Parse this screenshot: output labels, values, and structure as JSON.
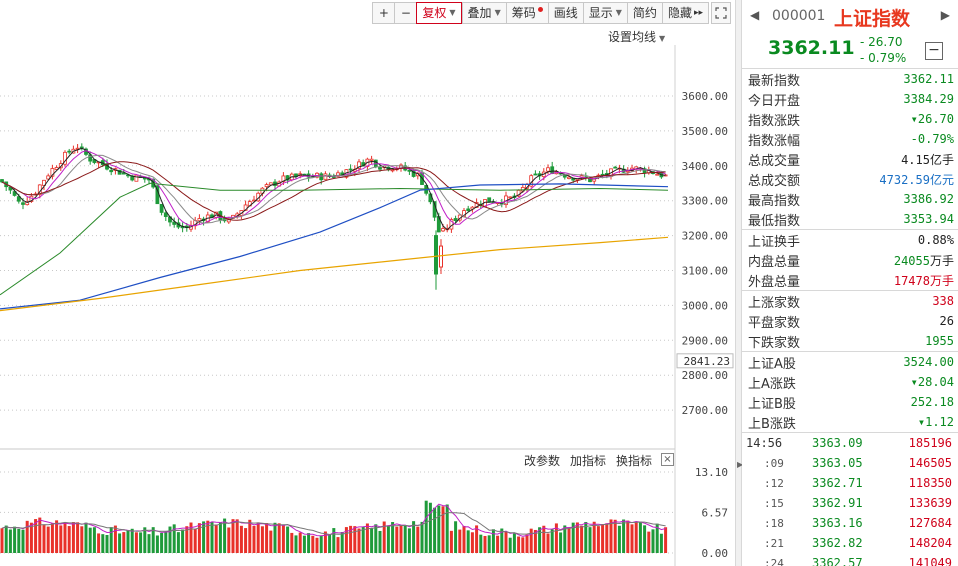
{
  "toolbar": {
    "zoom_in": "+",
    "zoom_out": "−",
    "fuquan": "复权",
    "diejia": "叠加",
    "chouma": "筹码",
    "huaxian": "画线",
    "xianshi": "显示",
    "jianyue": "简约",
    "yincang": "隐藏",
    "more": "▸▸"
  },
  "ma_setting": "设置均线",
  "indicator_bar": {
    "change_params": "改参数",
    "add_indicator": "加指标",
    "switch_indicator": "换指标",
    "close": "×"
  },
  "price_axis": {
    "ticks": [
      "3600.00",
      "3500.00",
      "3400.00",
      "3300.00",
      "3200.00",
      "3100.00",
      "3000.00",
      "2900.00",
      "2800.00",
      "2700.00"
    ],
    "low_marker": "2841.23"
  },
  "volume_axis": {
    "ticks": [
      "13.10",
      "6.57",
      "0.00"
    ]
  },
  "chart_data": {
    "type": "candlestick",
    "ylim": [
      2640,
      3650
    ],
    "grid": true,
    "price_ticks": [
      3600,
      3500,
      3400,
      3300,
      3200,
      3100,
      3000,
      2900,
      2800,
      2700
    ],
    "low_marker": 2841.23,
    "volume_ticks": [
      0,
      6.57,
      13.1
    ],
    "colors": {
      "up": "#e8312a",
      "down": "#1e9a3a",
      "ma_white": "#8a8a8a",
      "ma_purple": "#c020c8",
      "ma_maroon": "#8b1a1a",
      "ma_green": "#2a8a2a",
      "ma_blue": "#1f4fc4",
      "ma_orange": "#e8a400"
    }
  },
  "quote": {
    "prev_icon": "◀",
    "next_icon": "▶",
    "code": "000001",
    "name": "上证指数",
    "price": "3362.11",
    "change": "- 26.70",
    "pct": "- 0.79%",
    "collapse": "−",
    "group1": [
      {
        "label": "最新指数",
        "value": "3362.11",
        "color": "green"
      },
      {
        "label": "今日开盘",
        "value": "3384.29",
        "color": "green"
      },
      {
        "label": "指数涨跌",
        "value": "▾26.70",
        "color": "green"
      },
      {
        "label": "指数涨幅",
        "value": "-0.79%",
        "color": "green"
      },
      {
        "label": "总成交量",
        "value": "4.15",
        "unit": "亿手",
        "color": "black"
      },
      {
        "label": "总成交额",
        "value": "4732.59",
        "unit": "亿元",
        "color": "blue"
      },
      {
        "label": "最高指数",
        "value": "3386.92",
        "color": "green"
      },
      {
        "label": "最低指数",
        "value": "3353.94",
        "color": "green"
      }
    ],
    "group2": [
      {
        "label": "上证换手",
        "value": "0.88%",
        "color": "black"
      },
      {
        "label": "内盘总量",
        "value": "24055",
        "unit": "万手",
        "color": "green"
      },
      {
        "label": "外盘总量",
        "value": "17478",
        "unit": "万手",
        "color": "red"
      }
    ],
    "group3": [
      {
        "label": "上涨家数",
        "value": "338",
        "color": "red"
      },
      {
        "label": "平盘家数",
        "value": "26",
        "color": "black"
      },
      {
        "label": "下跌家数",
        "value": "1955",
        "color": "green"
      }
    ],
    "group4": [
      {
        "label": "上证A股",
        "value": "3524.00",
        "color": "green"
      },
      {
        "label": "上A涨跌",
        "value": "▾28.04",
        "color": "green"
      },
      {
        "label": "上证B股",
        "value": "252.18",
        "color": "green"
      },
      {
        "label": "上B涨跌",
        "value": "▾1.12",
        "color": "green"
      }
    ],
    "ticks": [
      {
        "time": "14:56",
        "price": "3363.09",
        "vol": "185196",
        "main": true
      },
      {
        "time": ":09",
        "price": "3363.05",
        "vol": "146505"
      },
      {
        "time": ":12",
        "price": "3362.71",
        "vol": "118350"
      },
      {
        "time": ":15",
        "price": "3362.91",
        "vol": "133639"
      },
      {
        "time": ":18",
        "price": "3363.16",
        "vol": "127684"
      },
      {
        "time": ":21",
        "price": "3362.82",
        "vol": "148204"
      },
      {
        "time": ":24",
        "price": "3362.57",
        "vol": "141049"
      }
    ]
  }
}
